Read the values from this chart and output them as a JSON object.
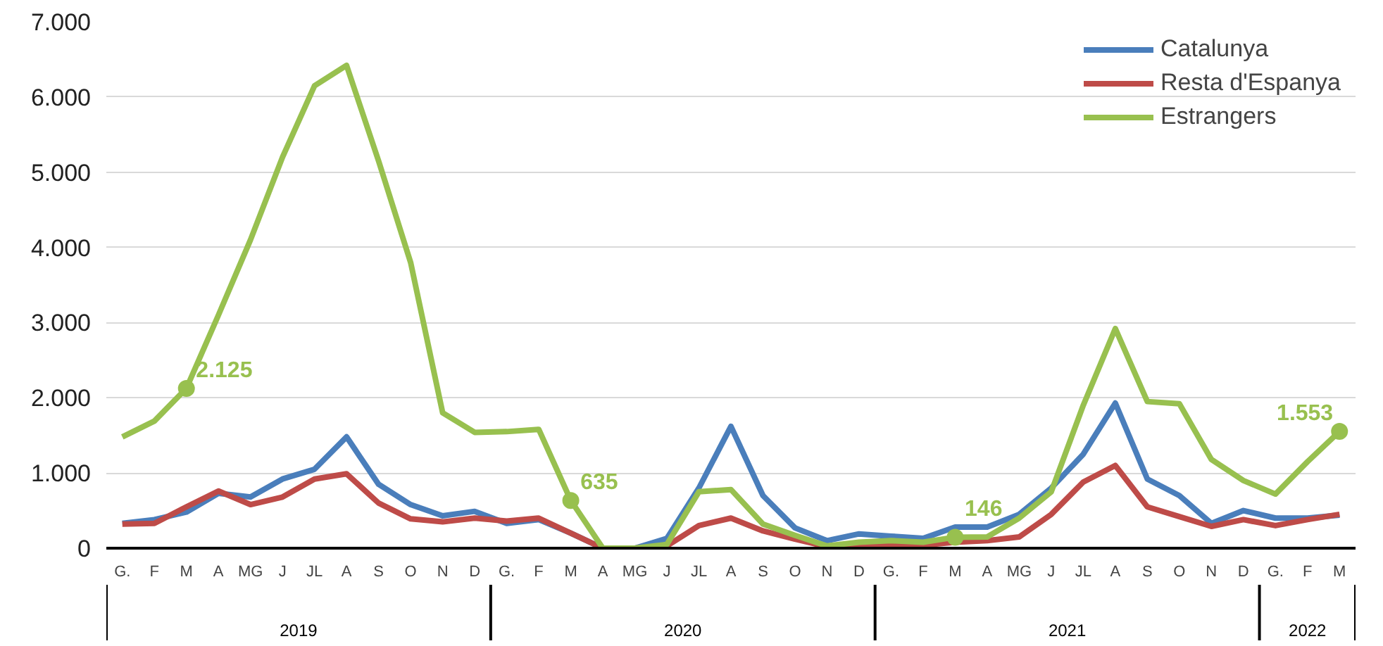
{
  "chart_data": {
    "type": "line",
    "categories": [
      "G.",
      "F",
      "M",
      "A",
      "MG",
      "J",
      "JL",
      "A",
      "S",
      "O",
      "N",
      "D",
      "G.",
      "F",
      "M",
      "A",
      "MG",
      "J",
      "JL",
      "A",
      "S",
      "O",
      "N",
      "D",
      "G.",
      "F",
      "M",
      "A",
      "MG",
      "J",
      "JL",
      "A",
      "S",
      "O",
      "N",
      "D",
      "G.",
      "F",
      "M"
    ],
    "series": [
      {
        "name": "Catalunya",
        "color": "#4a7ebb",
        "values": [
          330,
          380,
          480,
          730,
          680,
          920,
          1050,
          1480,
          850,
          580,
          430,
          490,
          330,
          380,
          200,
          0,
          0,
          130,
          800,
          1620,
          700,
          270,
          100,
          190,
          160,
          130,
          280,
          280,
          450,
          800,
          1250,
          1930,
          920,
          700,
          330,
          500,
          400,
          400,
          440
        ]
      },
      {
        "name": "Resta d'Espanya",
        "color": "#be4b48",
        "values": [
          320,
          330,
          550,
          760,
          580,
          680,
          920,
          990,
          600,
          390,
          350,
          400,
          360,
          400,
          200,
          0,
          0,
          30,
          300,
          400,
          230,
          120,
          20,
          30,
          30,
          40,
          80,
          100,
          150,
          450,
          880,
          1100,
          550,
          420,
          290,
          380,
          300,
          380,
          450
        ]
      },
      {
        "name": "Estrangers",
        "color": "#98c04f",
        "values": [
          1480,
          1690,
          2125,
          3100,
          4100,
          5200,
          6150,
          6420,
          5150,
          3800,
          1800,
          1540,
          1550,
          1580,
          635,
          0,
          0,
          50,
          750,
          780,
          320,
          170,
          30,
          80,
          100,
          80,
          146,
          150,
          400,
          750,
          1900,
          2920,
          1950,
          1920,
          1180,
          900,
          720,
          1150,
          1553
        ],
        "value_labels": [
          null,
          null,
          "2.125",
          null,
          null,
          null,
          null,
          null,
          null,
          null,
          null,
          null,
          null,
          null,
          "635",
          null,
          null,
          null,
          null,
          null,
          null,
          null,
          null,
          null,
          null,
          null,
          "146",
          null,
          null,
          null,
          null,
          null,
          null,
          null,
          null,
          null,
          null,
          null,
          "1.553"
        ]
      }
    ],
    "annotations": [
      "2019",
      "2020",
      "2021",
      "2022"
    ],
    "ylim": [
      0,
      7000
    ],
    "yticks": [
      {
        "value": 0,
        "label": "0"
      },
      {
        "value": 1000,
        "label": "1.000"
      },
      {
        "value": 2000,
        "label": "2.000"
      },
      {
        "value": 3000,
        "label": "3.000"
      },
      {
        "value": 4000,
        "label": "4.000"
      },
      {
        "value": 5000,
        "label": "5.000"
      },
      {
        "value": 6000,
        "label": "6.000"
      },
      {
        "value": 7000,
        "label": "7.000"
      }
    ],
    "grid": "y",
    "legend": "top right",
    "line_style": "solid"
  }
}
